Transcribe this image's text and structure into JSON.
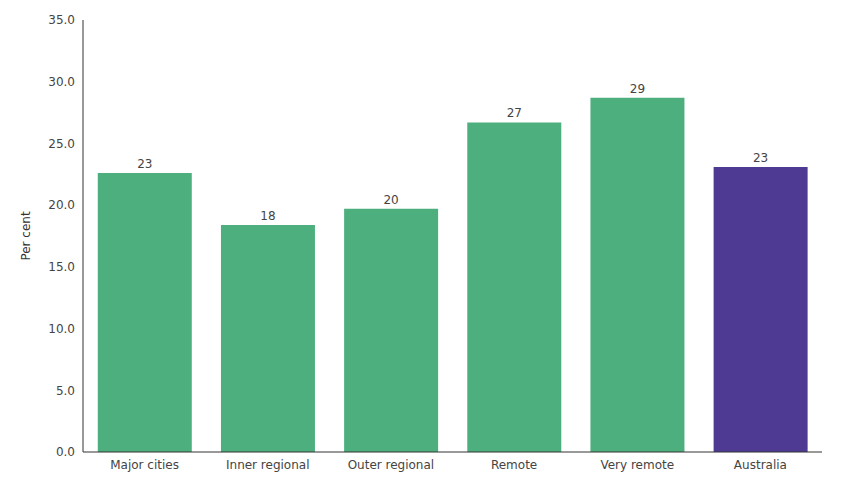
{
  "chart_data": {
    "type": "bar",
    "categories": [
      "Major cities",
      "Inner regional",
      "Outer regional",
      "Remote",
      "Very remote",
      "Australia"
    ],
    "values": [
      22.6,
      18.4,
      19.7,
      26.7,
      28.7,
      23.1
    ],
    "value_labels": [
      "23",
      "18",
      "20",
      "27",
      "29",
      "23"
    ],
    "data_labels": true,
    "colors": [
      "#4caf7d",
      "#4caf7d",
      "#4caf7d",
      "#4caf7d",
      "#4caf7d",
      "#4f3a93"
    ],
    "ylabel": "Per cent",
    "ylim": [
      0,
      35
    ],
    "yticks": [
      {
        "value": 0,
        "label": "0.0"
      },
      {
        "value": 5,
        "label": "5.0"
      },
      {
        "value": 10,
        "label": "10.0"
      },
      {
        "value": 15,
        "label": "15.0"
      },
      {
        "value": 20,
        "label": "20.0"
      },
      {
        "value": 25,
        "label": "25.0"
      },
      {
        "value": 30,
        "label": "30.0"
      },
      {
        "value": 35,
        "label": "35.0"
      }
    ],
    "grid": false
  }
}
